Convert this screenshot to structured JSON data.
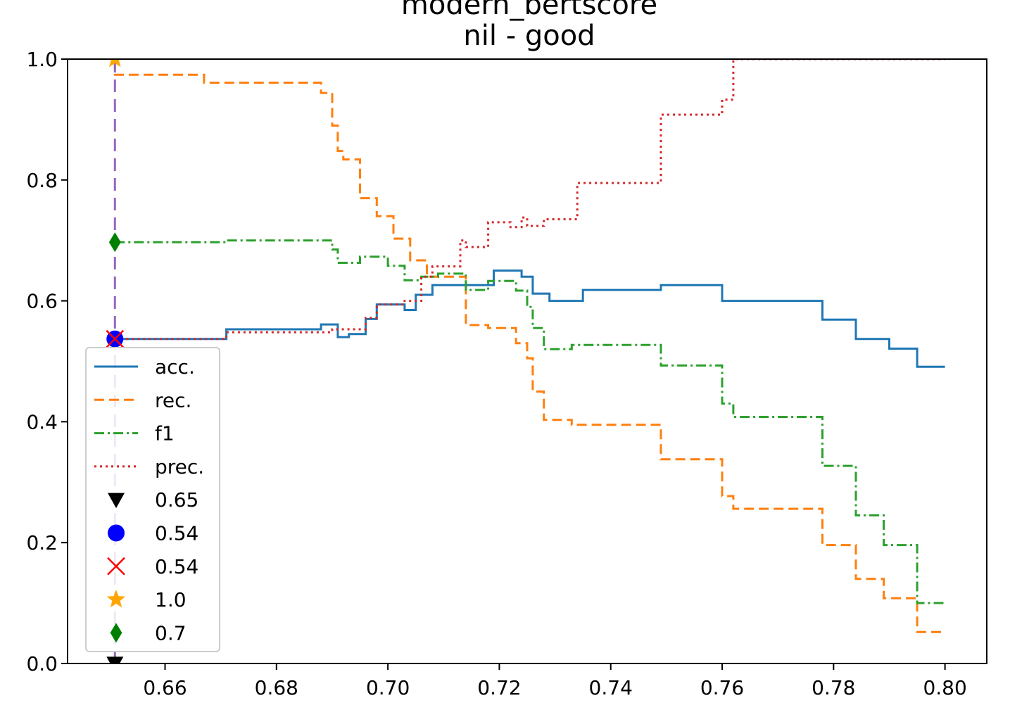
{
  "chart_data": {
    "type": "line",
    "title": "modern_bertscore",
    "subtitle": "nil  -  good",
    "xlim": [
      0.6425,
      0.8075
    ],
    "ylim": [
      0.0,
      1.0
    ],
    "x_ticks": [
      0.66,
      0.68,
      0.7,
      0.72,
      0.74,
      0.76,
      0.78,
      0.8
    ],
    "x_tick_labels": [
      "0.66",
      "0.68",
      "0.70",
      "0.72",
      "0.74",
      "0.76",
      "0.78",
      "0.80"
    ],
    "y_ticks": [
      0.0,
      0.2,
      0.4,
      0.6,
      0.8,
      1.0
    ],
    "y_tick_labels": [
      "0.0",
      "0.2",
      "0.4",
      "0.6",
      "0.8",
      "1.0"
    ],
    "series": [
      {
        "name": "acc.",
        "color": "#1f77b4",
        "style": "solid",
        "points": [
          [
            0.651,
            0.537
          ],
          [
            0.671,
            0.537
          ],
          [
            0.671,
            0.553
          ],
          [
            0.688,
            0.553
          ],
          [
            0.688,
            0.561
          ],
          [
            0.691,
            0.561
          ],
          [
            0.691,
            0.54
          ],
          [
            0.693,
            0.54
          ],
          [
            0.693,
            0.545
          ],
          [
            0.696,
            0.545
          ],
          [
            0.696,
            0.57
          ],
          [
            0.698,
            0.57
          ],
          [
            0.698,
            0.594
          ],
          [
            0.703,
            0.594
          ],
          [
            0.703,
            0.585
          ],
          [
            0.705,
            0.585
          ],
          [
            0.705,
            0.61
          ],
          [
            0.708,
            0.61
          ],
          [
            0.708,
            0.626
          ],
          [
            0.714,
            0.626
          ],
          [
            0.714,
            0.626
          ],
          [
            0.719,
            0.626
          ],
          [
            0.719,
            0.65
          ],
          [
            0.724,
            0.65
          ],
          [
            0.724,
            0.64
          ],
          [
            0.726,
            0.64
          ],
          [
            0.726,
            0.612
          ],
          [
            0.729,
            0.612
          ],
          [
            0.729,
            0.6
          ],
          [
            0.735,
            0.6
          ],
          [
            0.735,
            0.618
          ],
          [
            0.749,
            0.618
          ],
          [
            0.749,
            0.626
          ],
          [
            0.76,
            0.626
          ],
          [
            0.76,
            0.6
          ],
          [
            0.778,
            0.6
          ],
          [
            0.778,
            0.569
          ],
          [
            0.784,
            0.569
          ],
          [
            0.784,
            0.537
          ],
          [
            0.79,
            0.537
          ],
          [
            0.79,
            0.521
          ],
          [
            0.795,
            0.521
          ],
          [
            0.795,
            0.491
          ],
          [
            0.8,
            0.491
          ]
        ]
      },
      {
        "name": "rec.",
        "color": "#ff7f0e",
        "style": "dashed",
        "points": [
          [
            0.651,
            1.0
          ],
          [
            0.651,
            0.974
          ],
          [
            0.667,
            0.974
          ],
          [
            0.667,
            0.961
          ],
          [
            0.688,
            0.961
          ],
          [
            0.688,
            0.944
          ],
          [
            0.69,
            0.944
          ],
          [
            0.69,
            0.89
          ],
          [
            0.691,
            0.89
          ],
          [
            0.691,
            0.848
          ],
          [
            0.692,
            0.848
          ],
          [
            0.692,
            0.834
          ],
          [
            0.695,
            0.834
          ],
          [
            0.695,
            0.77
          ],
          [
            0.698,
            0.77
          ],
          [
            0.698,
            0.74
          ],
          [
            0.701,
            0.74
          ],
          [
            0.701,
            0.703
          ],
          [
            0.704,
            0.703
          ],
          [
            0.704,
            0.667
          ],
          [
            0.707,
            0.667
          ],
          [
            0.707,
            0.64
          ],
          [
            0.714,
            0.64
          ],
          [
            0.714,
            0.56
          ],
          [
            0.718,
            0.56
          ],
          [
            0.718,
            0.555
          ],
          [
            0.723,
            0.555
          ],
          [
            0.723,
            0.53
          ],
          [
            0.725,
            0.53
          ],
          [
            0.725,
            0.505
          ],
          [
            0.726,
            0.505
          ],
          [
            0.726,
            0.45
          ],
          [
            0.728,
            0.45
          ],
          [
            0.728,
            0.403
          ],
          [
            0.733,
            0.403
          ],
          [
            0.733,
            0.395
          ],
          [
            0.749,
            0.395
          ],
          [
            0.749,
            0.338
          ],
          [
            0.76,
            0.338
          ],
          [
            0.76,
            0.277
          ],
          [
            0.762,
            0.277
          ],
          [
            0.762,
            0.256
          ],
          [
            0.778,
            0.256
          ],
          [
            0.778,
            0.196
          ],
          [
            0.784,
            0.196
          ],
          [
            0.784,
            0.14
          ],
          [
            0.789,
            0.14
          ],
          [
            0.789,
            0.108
          ],
          [
            0.795,
            0.108
          ],
          [
            0.795,
            0.052
          ],
          [
            0.8,
            0.052
          ]
        ]
      },
      {
        "name": "f1",
        "color": "#2ca02c",
        "style": "dashdot",
        "points": [
          [
            0.651,
            0.697
          ],
          [
            0.671,
            0.697
          ],
          [
            0.671,
            0.7
          ],
          [
            0.69,
            0.7
          ],
          [
            0.69,
            0.685
          ],
          [
            0.691,
            0.685
          ],
          [
            0.691,
            0.663
          ],
          [
            0.695,
            0.663
          ],
          [
            0.695,
            0.673
          ],
          [
            0.7,
            0.673
          ],
          [
            0.7,
            0.658
          ],
          [
            0.703,
            0.658
          ],
          [
            0.703,
            0.634
          ],
          [
            0.706,
            0.634
          ],
          [
            0.706,
            0.64
          ],
          [
            0.709,
            0.64
          ],
          [
            0.709,
            0.645
          ],
          [
            0.714,
            0.645
          ],
          [
            0.714,
            0.618
          ],
          [
            0.718,
            0.618
          ],
          [
            0.718,
            0.633
          ],
          [
            0.723,
            0.633
          ],
          [
            0.723,
            0.617
          ],
          [
            0.725,
            0.617
          ],
          [
            0.725,
            0.59
          ],
          [
            0.726,
            0.59
          ],
          [
            0.726,
            0.555
          ],
          [
            0.728,
            0.555
          ],
          [
            0.728,
            0.52
          ],
          [
            0.733,
            0.52
          ],
          [
            0.733,
            0.527
          ],
          [
            0.749,
            0.527
          ],
          [
            0.749,
            0.493
          ],
          [
            0.76,
            0.493
          ],
          [
            0.76,
            0.43
          ],
          [
            0.762,
            0.43
          ],
          [
            0.762,
            0.408
          ],
          [
            0.778,
            0.408
          ],
          [
            0.778,
            0.327
          ],
          [
            0.784,
            0.327
          ],
          [
            0.784,
            0.245
          ],
          [
            0.789,
            0.245
          ],
          [
            0.789,
            0.196
          ],
          [
            0.795,
            0.196
          ],
          [
            0.795,
            0.1
          ],
          [
            0.8,
            0.1
          ]
        ]
      },
      {
        "name": "prec.",
        "color": "#d62728",
        "style": "dotted",
        "points": [
          [
            0.651,
            0.537
          ],
          [
            0.671,
            0.537
          ],
          [
            0.671,
            0.548
          ],
          [
            0.69,
            0.548
          ],
          [
            0.69,
            0.553
          ],
          [
            0.696,
            0.553
          ],
          [
            0.696,
            0.572
          ],
          [
            0.698,
            0.572
          ],
          [
            0.698,
            0.594
          ],
          [
            0.703,
            0.594
          ],
          [
            0.703,
            0.6
          ],
          [
            0.706,
            0.6
          ],
          [
            0.706,
            0.64
          ],
          [
            0.708,
            0.64
          ],
          [
            0.708,
            0.657
          ],
          [
            0.713,
            0.657
          ],
          [
            0.713,
            0.7
          ],
          [
            0.714,
            0.7
          ],
          [
            0.714,
            0.689
          ],
          [
            0.718,
            0.689
          ],
          [
            0.718,
            0.73
          ],
          [
            0.722,
            0.73
          ],
          [
            0.722,
            0.722
          ],
          [
            0.724,
            0.722
          ],
          [
            0.724,
            0.738
          ],
          [
            0.725,
            0.738
          ],
          [
            0.725,
            0.724
          ],
          [
            0.728,
            0.724
          ],
          [
            0.728,
            0.735
          ],
          [
            0.734,
            0.735
          ],
          [
            0.734,
            0.795
          ],
          [
            0.749,
            0.795
          ],
          [
            0.749,
            0.908
          ],
          [
            0.76,
            0.908
          ],
          [
            0.76,
            0.933
          ],
          [
            0.762,
            0.933
          ],
          [
            0.762,
            1.0
          ],
          [
            0.8,
            1.0
          ]
        ]
      }
    ],
    "threshold_line": {
      "x": 0.651,
      "y_from": 0.0,
      "y_to": 1.0,
      "color": "#9467bd",
      "style": "dashed"
    },
    "markers": [
      {
        "label": "0.65",
        "x": 0.651,
        "y": 0.0,
        "shape": "triangle-down",
        "color": "#000000"
      },
      {
        "label": "0.54",
        "x": 0.651,
        "y": 0.537,
        "shape": "circle",
        "color": "#0000ff"
      },
      {
        "label": "0.54",
        "x": 0.651,
        "y": 0.537,
        "shape": "x",
        "color": "#ff0000"
      },
      {
        "label": "1.0",
        "x": 0.651,
        "y": 1.0,
        "shape": "star",
        "color": "#ffa500"
      },
      {
        "label": "0.7",
        "x": 0.651,
        "y": 0.697,
        "shape": "diamond",
        "color": "#008000"
      }
    ],
    "legend_position": "lower-left"
  }
}
